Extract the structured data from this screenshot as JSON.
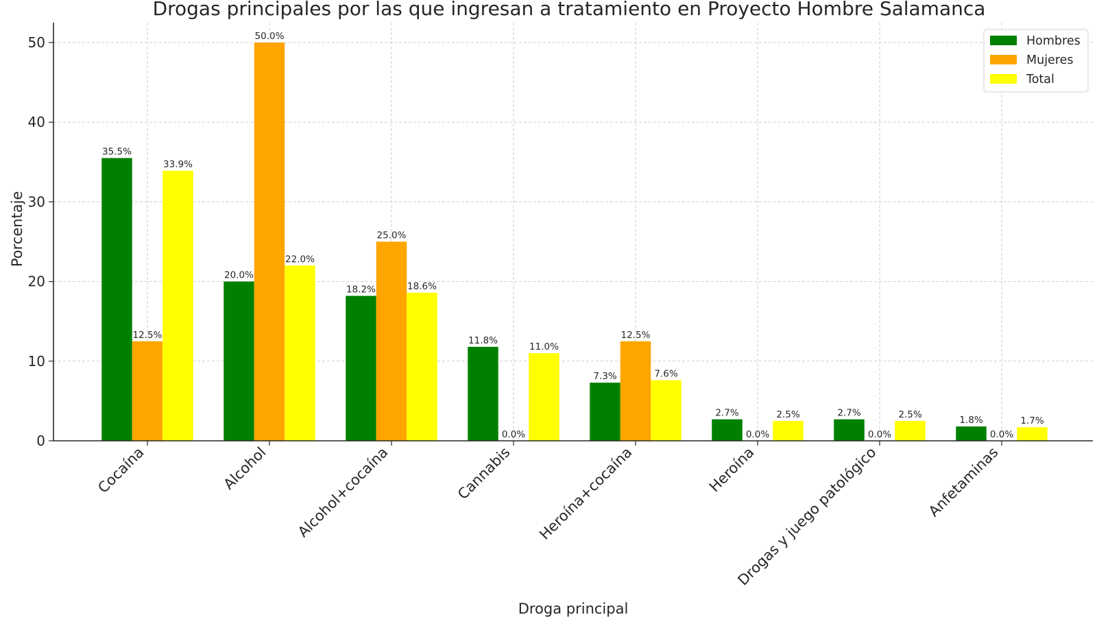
{
  "chart_data": {
    "type": "bar",
    "title": "Drogas principales por las que ingresan a tratamiento en Proyecto Hombre Salamanca",
    "xlabel": "Droga principal",
    "ylabel": "Porcentaje",
    "ylim": [
      0,
      52.5
    ],
    "yticks": [
      0,
      10,
      20,
      30,
      40,
      50
    ],
    "grid": true,
    "legend_position": "top-right",
    "categories": [
      "Cocaína",
      "Alcohol",
      "Alcohol+cocaína",
      "Cannabis",
      "Heroína+cocaína",
      "Heroína",
      "Drogas y juego patológico",
      "Anfetaminas"
    ],
    "series": [
      {
        "name": "Hombres",
        "color": "#008000",
        "values": [
          35.5,
          20.0,
          18.2,
          11.8,
          7.3,
          2.7,
          2.7,
          1.8
        ],
        "labels": [
          "35.5%",
          "20.0%",
          "18.2%",
          "11.8%",
          "7.3%",
          "2.7%",
          "2.7%",
          "1.8%"
        ]
      },
      {
        "name": "Mujeres",
        "color": "#FFA500",
        "values": [
          12.5,
          50.0,
          25.0,
          0.0,
          12.5,
          0.0,
          0.0,
          0.0
        ],
        "labels": [
          "12.5%",
          "50.0%",
          "25.0%",
          "0.0%",
          "12.5%",
          "0.0%",
          "0.0%",
          "0.0%"
        ]
      },
      {
        "name": "Total",
        "color": "#FFFF00",
        "values": [
          33.9,
          22.0,
          18.6,
          11.0,
          7.6,
          2.5,
          2.5,
          1.7
        ],
        "labels": [
          "33.9%",
          "22.0%",
          "18.6%",
          "11.0%",
          "7.6%",
          "2.5%",
          "2.5%",
          "1.7%"
        ]
      }
    ]
  }
}
